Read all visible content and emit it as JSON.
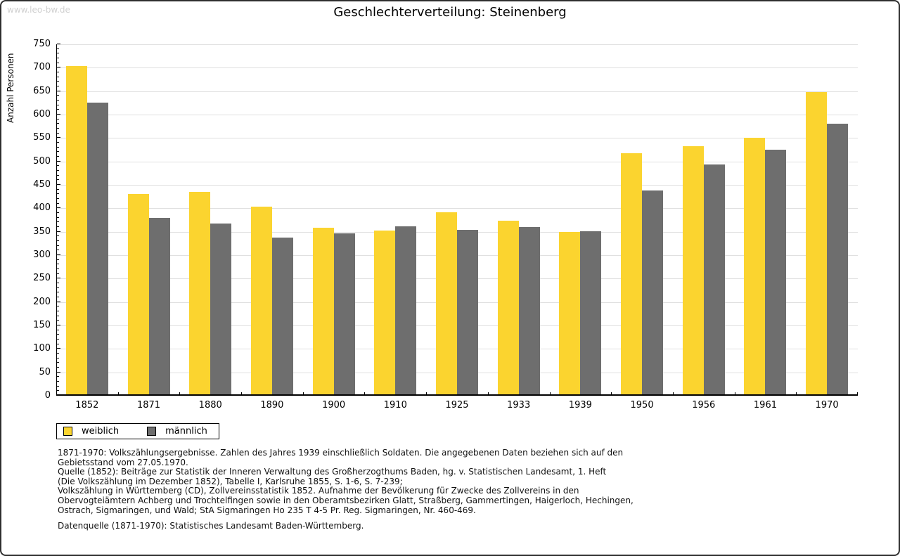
{
  "watermark": "www.leo-bw.de",
  "chart_data": {
    "type": "bar",
    "title": "Geschlechterverteilung: Steinenberg",
    "xlabel": "",
    "ylabel": "Anzahl Personen",
    "ylim": [
      0,
      750
    ],
    "ytick_major_step": 50,
    "ytick_minor_step": 10,
    "grid": true,
    "legend_position": "bottom-left",
    "categories": [
      "1852",
      "1871",
      "1880",
      "1890",
      "1900",
      "1910",
      "1925",
      "1933",
      "1939",
      "1950",
      "1956",
      "1961",
      "1970"
    ],
    "series": [
      {
        "name": "weiblich",
        "color": "#FBD42F",
        "values": [
          704,
          430,
          435,
          403,
          359,
          353,
          392,
          374,
          349,
          518,
          532,
          550,
          648
        ]
      },
      {
        "name": "männlich",
        "color": "#6E6E6E",
        "values": [
          625,
          379,
          368,
          337,
          347,
          362,
          354,
          360,
          351,
          438,
          493,
          525,
          580
        ]
      }
    ]
  },
  "colors": {
    "grid": "#e0e0e0",
    "axis": "#000000",
    "watermark": "#d0d0d0",
    "weiblich": "#FBD42F",
    "maennlich": "#6E6E6E"
  },
  "footnotes": {
    "lines": [
      "1871-1970: Volkszählungsergebnisse. Zahlen des Jahres 1939 einschließlich Soldaten. Die angegebenen Daten beziehen sich auf den",
      "Gebietsstand vom 27.05.1970.",
      "Quelle (1852): Beiträge zur Statistik der Inneren Verwaltung des Großherzogthums Baden, hg. v. Statistischen Landesamt, 1. Heft",
      "(Die Volkszählung im Dezember 1852), Tabelle I, Karlsruhe 1855, S. 1-6, S. 7-239;",
      "Volkszählung in Württemberg (CD), Zollvereinsstatistik 1852. Aufnahme der Bevölkerung für Zwecke des Zollvereins in den",
      "Obervogteiämtern Achberg und Trochtelfingen sowie in den Oberamtsbezirken Glatt, Straßberg, Gammertingen, Haigerloch, Hechingen,",
      "Ostrach, Sigmaringen, und Wald; StA Sigmaringen Ho 235 T 4-5 Pr. Reg. Sigmaringen, Nr. 460-469."
    ],
    "source": "Datenquelle (1871-1970): Statistisches Landesamt Baden-Württemberg."
  }
}
